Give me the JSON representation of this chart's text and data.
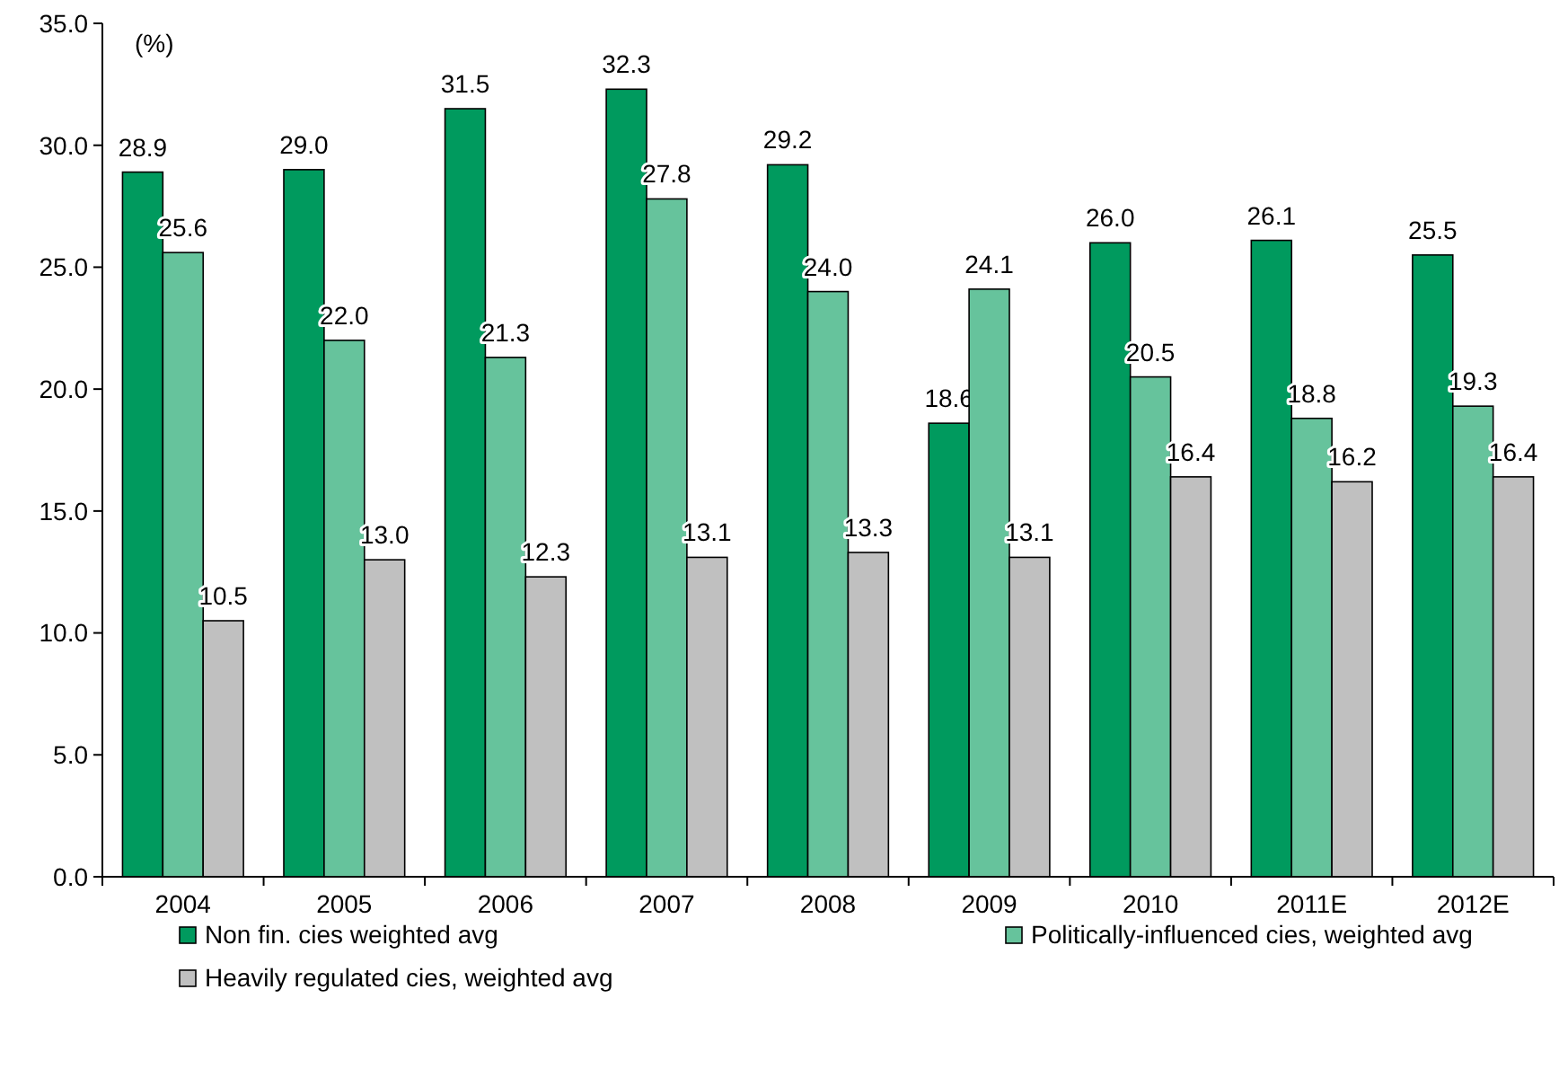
{
  "chart_data": {
    "type": "bar",
    "ylabel": "(%)",
    "categories": [
      "2004",
      "2005",
      "2006",
      "2007",
      "2008",
      "2009",
      "2010",
      "2011E",
      "2012E"
    ],
    "series": [
      {
        "name": "Non fin. cies weighted avg",
        "color": "#009a5e",
        "values": [
          28.9,
          29.0,
          31.5,
          32.3,
          29.2,
          18.6,
          26.0,
          26.1,
          25.5
        ],
        "value_labels": [
          "28.9",
          "29.0",
          "31.5",
          "32.3",
          "29.2",
          "18.6",
          "26.0",
          "26.1",
          "25.5"
        ]
      },
      {
        "name": "Politically-influenced cies, weighted avg",
        "color": "#66c39c",
        "values": [
          25.6,
          22.0,
          21.3,
          27.8,
          24.0,
          24.1,
          20.5,
          18.8,
          19.3
        ],
        "value_labels": [
          "25.6",
          "22.0",
          "21.3",
          "27.8",
          "24.0",
          "24.1",
          "20.5",
          "18.8",
          "19.3"
        ]
      },
      {
        "name": "Heavily regulated cies, weighted avg",
        "color": "#c0c0c0",
        "values": [
          10.5,
          13.0,
          12.3,
          13.1,
          13.3,
          13.1,
          16.4,
          16.2,
          16.4
        ],
        "value_labels": [
          "10.5",
          "13.0",
          "12.3",
          "13.1",
          "13.3",
          "13.1",
          "16.4",
          "16.2",
          "16.4"
        ]
      }
    ],
    "ylim": [
      0,
      35
    ],
    "yticks": [
      {
        "value": 0,
        "label": "0.0"
      },
      {
        "value": 5,
        "label": "5.0"
      },
      {
        "value": 10,
        "label": "10.0"
      },
      {
        "value": 15,
        "label": "15.0"
      },
      {
        "value": 20,
        "label": "20.0"
      },
      {
        "value": 25,
        "label": "25.0"
      },
      {
        "value": 30,
        "label": "30.0"
      },
      {
        "value": 35,
        "label": "35.0"
      }
    ],
    "legend": "bottom"
  }
}
